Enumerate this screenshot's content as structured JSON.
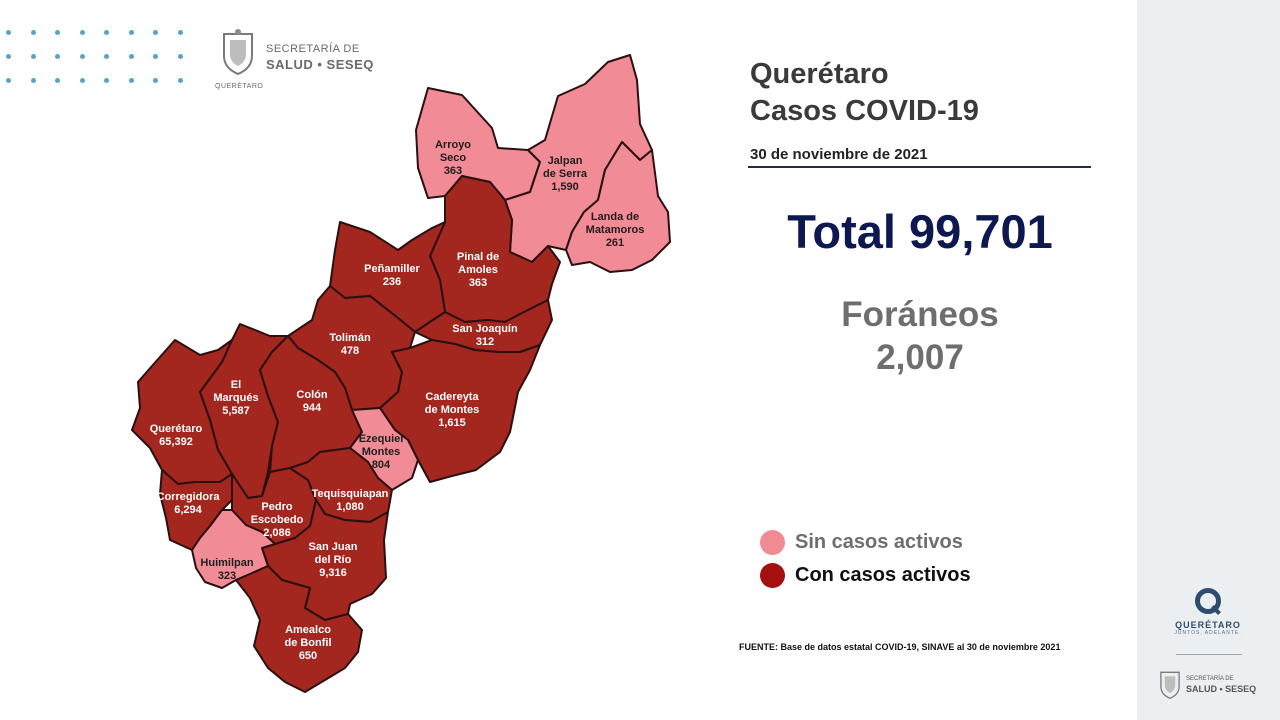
{
  "header": {
    "title_line1": "Querétaro",
    "title_line2": "Casos COVID-19",
    "date": "30 de noviembre de 2021",
    "total": "Total 99,701",
    "foraneos_label": "Foráneos",
    "foraneos_value": "2,007"
  },
  "logo": {
    "line1": "SECRETARÍA DE",
    "line2": "SALUD • SESEQ",
    "small": "QUERÉTARO"
  },
  "legend": {
    "items": [
      {
        "label": "Sin casos activos",
        "color": "#f08a93",
        "text_color": "#6e6e6e"
      },
      {
        "label": "Con casos activos",
        "color": "#a50f0f",
        "text_color": "#111111"
      }
    ]
  },
  "fuente": "FUENTE: Base de datos estatal COVID-19, SINAVE al 30 de noviembre 2021",
  "colors": {
    "active": "#a3261f",
    "inactive": "#f18b95",
    "border": "#2a1010"
  },
  "sidebar": {
    "brand": "QUERÉTARO",
    "slogan": "JUNTOS, ADELANTE.",
    "logo_line1": "SECRETARÍA DE",
    "logo_line2": "SALUD • SESEQ"
  },
  "municipalities": [
    {
      "name1": "Arroyo",
      "name2": "Seco",
      "cases": "363",
      "status": "inactive"
    },
    {
      "name1": "Jalpan",
      "name2": "de Serra",
      "cases": "1,590",
      "status": "inactive"
    },
    {
      "name1": "Landa de",
      "name2": "Matamoros",
      "cases": "261",
      "status": "inactive"
    },
    {
      "name1": "Pinal de",
      "name2": "Amoles",
      "cases": "363",
      "status": "active"
    },
    {
      "name1": "Peñamiller",
      "name2": "",
      "cases": "236",
      "status": "active"
    },
    {
      "name1": "San Joaquín",
      "name2": "",
      "cases": "312",
      "status": "active"
    },
    {
      "name1": "Tolimán",
      "name2": "",
      "cases": "478",
      "status": "active"
    },
    {
      "name1": "El",
      "name2": "Marqués",
      "cases": "5,587",
      "status": "active"
    },
    {
      "name1": "Colón",
      "name2": "",
      "cases": "944",
      "status": "active"
    },
    {
      "name1": "Cadereyta",
      "name2": "de Montes",
      "cases": "1,615",
      "status": "active"
    },
    {
      "name1": "Querétaro",
      "name2": "",
      "cases": "65,392",
      "status": "active"
    },
    {
      "name1": "Ezequiel",
      "name2": "Montes",
      "cases": "804",
      "status": "inactive"
    },
    {
      "name1": "Corregidora",
      "name2": "",
      "cases": "6,294",
      "status": "active"
    },
    {
      "name1": "Tequisquiapan",
      "name2": "",
      "cases": "1,080",
      "status": "active"
    },
    {
      "name1": "Pedro",
      "name2": "Escobedo",
      "cases": "2,086",
      "status": "active"
    },
    {
      "name1": "San Juan",
      "name2": "del Río",
      "cases": "9,316",
      "status": "active"
    },
    {
      "name1": "Huimilpan",
      "name2": "",
      "cases": "323",
      "status": "inactive"
    },
    {
      "name1": "Amealco",
      "name2": "de Bonfil",
      "cases": "650",
      "status": "active"
    }
  ]
}
